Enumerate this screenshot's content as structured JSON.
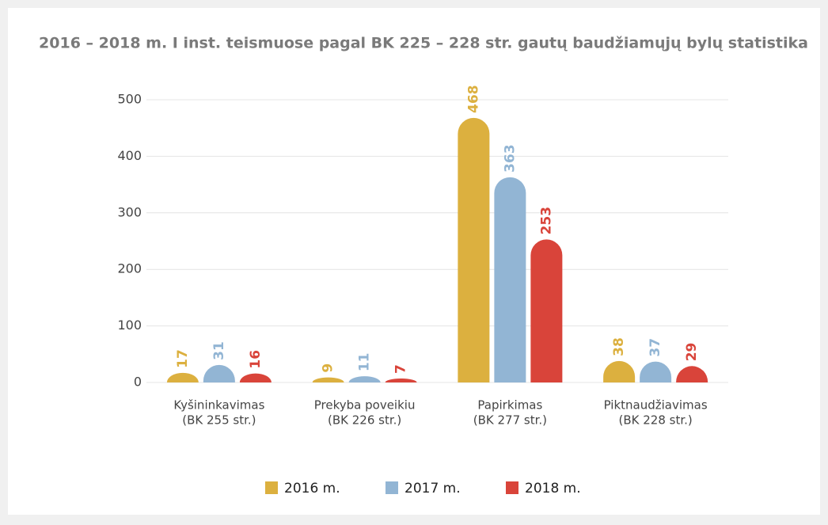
{
  "chart_data": {
    "type": "bar",
    "title": "2016 – 2018 m. I inst. teismuose pagal BK 225 – 228 str. gautų baudžiamųjų bylų statistika",
    "categories": [
      [
        "Kyšininkavimas",
        "(BK 255 str.)"
      ],
      [
        "Prekyba poveikiu",
        "(BK 226 str.)"
      ],
      [
        "Papirkimas",
        "(BK 277 str.)"
      ],
      [
        "Piktnaudžiavimas",
        "(BK 228 str.)"
      ]
    ],
    "series": [
      {
        "name": "2016 m.",
        "color": "#dcb03f",
        "values": [
          17,
          9,
          468,
          38
        ]
      },
      {
        "name": "2017 m.",
        "color": "#92b5d4",
        "values": [
          31,
          11,
          363,
          37
        ]
      },
      {
        "name": "2018 m.",
        "color": "#d9443a",
        "values": [
          16,
          7,
          253,
          29
        ]
      }
    ],
    "ylim": [
      0,
      500
    ],
    "yticks": [
      0,
      100,
      200,
      300,
      400,
      500
    ],
    "grid": true,
    "legend": "bottom"
  }
}
